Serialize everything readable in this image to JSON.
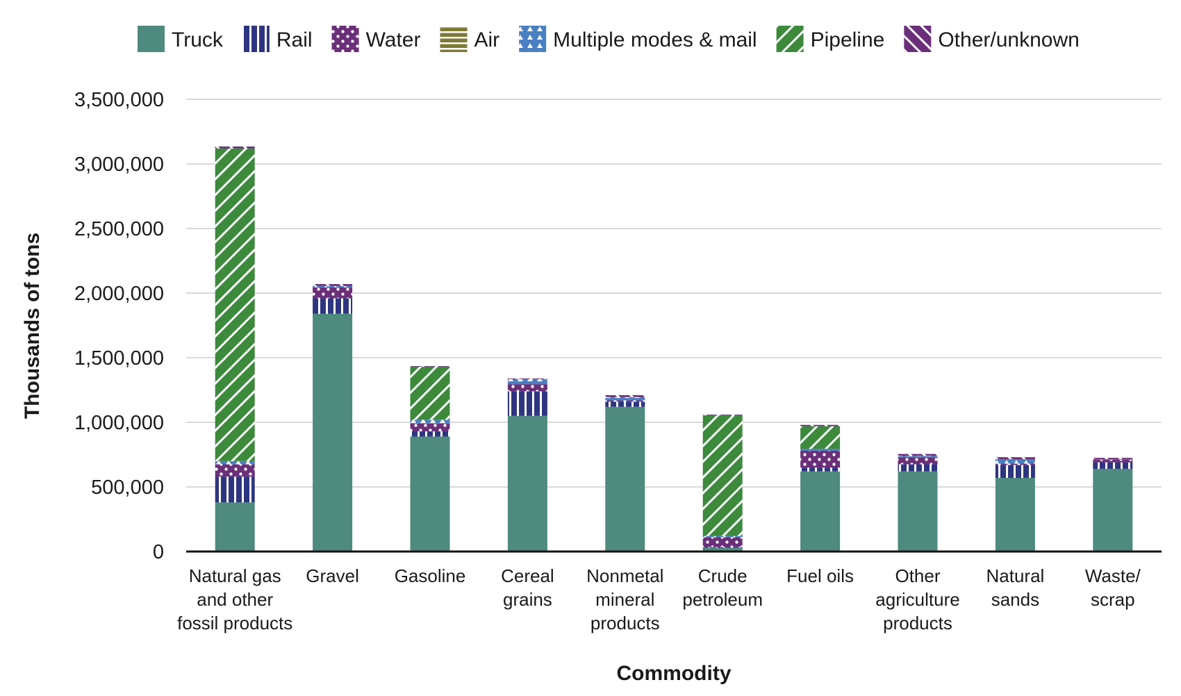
{
  "chart_data": {
    "type": "bar",
    "stacked": true,
    "title": "",
    "xlabel": "Commodity",
    "ylabel": "Thousands of tons",
    "ylim": [
      0,
      3500000
    ],
    "yticks": [
      0,
      500000,
      1000000,
      1500000,
      2000000,
      2500000,
      3000000,
      3500000
    ],
    "ytick_labels": [
      "0",
      "500,000",
      "1,000,000",
      "1,500,000",
      "2,000,000",
      "2,500,000",
      "3,000,000",
      "3,500,000"
    ],
    "grid": true,
    "legend_position": "top",
    "categories": [
      [
        "Natural gas",
        "and other",
        "fossil products"
      ],
      [
        "Gravel"
      ],
      [
        "Gasoline"
      ],
      [
        "Cereal",
        "grains"
      ],
      [
        "Nonmetal",
        "mineral",
        "products"
      ],
      [
        "Crude",
        "petroleum"
      ],
      [
        "Fuel oils"
      ],
      [
        "Other",
        "agriculture",
        "products"
      ],
      [
        "Natural",
        "sands"
      ],
      [
        "Waste/",
        "scrap"
      ]
    ],
    "series": [
      {
        "name": "Truck",
        "color": "#4e8a7e",
        "pattern": "solid",
        "values": [
          380000,
          1840000,
          890000,
          1050000,
          1120000,
          30000,
          620000,
          620000,
          570000,
          640000
        ]
      },
      {
        "name": "Rail",
        "color": "#2e3580",
        "pattern": "vertical-stripes",
        "values": [
          200000,
          120000,
          40000,
          190000,
          40000,
          5000,
          30000,
          55000,
          100000,
          50000
        ]
      },
      {
        "name": "Water",
        "color": "#6b2f7a",
        "pattern": "dots",
        "values": [
          95000,
          85000,
          60000,
          55000,
          10000,
          75000,
          130000,
          55000,
          10000,
          20000
        ]
      },
      {
        "name": "Air",
        "color": "#7f7a35",
        "pattern": "horizontal-stripes",
        "values": [
          0,
          0,
          0,
          0,
          0,
          0,
          0,
          0,
          0,
          0
        ]
      },
      {
        "name": "Multiple modes & mail",
        "color": "#4a7fc1",
        "pattern": "triangles",
        "values": [
          25000,
          10000,
          30000,
          40000,
          25000,
          10000,
          15000,
          10000,
          35000,
          5000
        ]
      },
      {
        "name": "Pipeline",
        "color": "#3d8a3d",
        "pattern": "diagonal-down",
        "values": [
          2420000,
          0,
          410000,
          0,
          0,
          935000,
          175000,
          0,
          0,
          0
        ]
      },
      {
        "name": "Other/unknown",
        "color": "#6b2f7a",
        "pattern": "diagonal-up",
        "values": [
          15000,
          15000,
          5000,
          5000,
          15000,
          5000,
          10000,
          15000,
          15000,
          10000
        ]
      }
    ]
  }
}
